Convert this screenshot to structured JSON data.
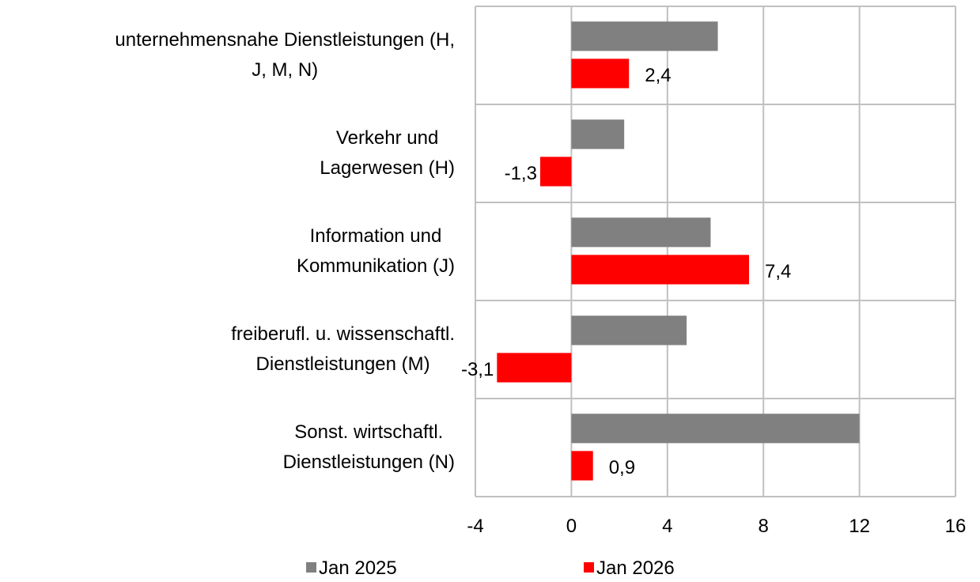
{
  "chart_data": {
    "type": "bar",
    "orientation": "horizontal",
    "categories": [
      [
        "unternehmensnahe Dienstleistungen (H,",
        "J, M, N)"
      ],
      [
        "Verkehr und",
        "Lagerwesen (H)"
      ],
      [
        "Information und",
        "Kommunikation (J)"
      ],
      [
        "freiberufl. u. wissenschaftl.",
        "Dienstleistungen (M)"
      ],
      [
        "Sonst. wirtschaftl.",
        "Dienstleistungen (N)"
      ]
    ],
    "series": [
      {
        "name": "Jan 2025",
        "color": "#808080",
        "values": [
          6.1,
          2.2,
          5.8,
          4.8,
          12.0
        ]
      },
      {
        "name": "Jan 2026",
        "color": "#ff0000",
        "values": [
          2.4,
          -1.3,
          7.4,
          -3.1,
          0.9
        ],
        "value_labels": [
          "2,4",
          "-1,3",
          "7,4",
          "-3,1",
          "0,9"
        ]
      }
    ],
    "xlim": [
      -4,
      16
    ],
    "xticks": [
      -4,
      0,
      4,
      8,
      12,
      16
    ],
    "grid": true,
    "legend": "bottom"
  }
}
